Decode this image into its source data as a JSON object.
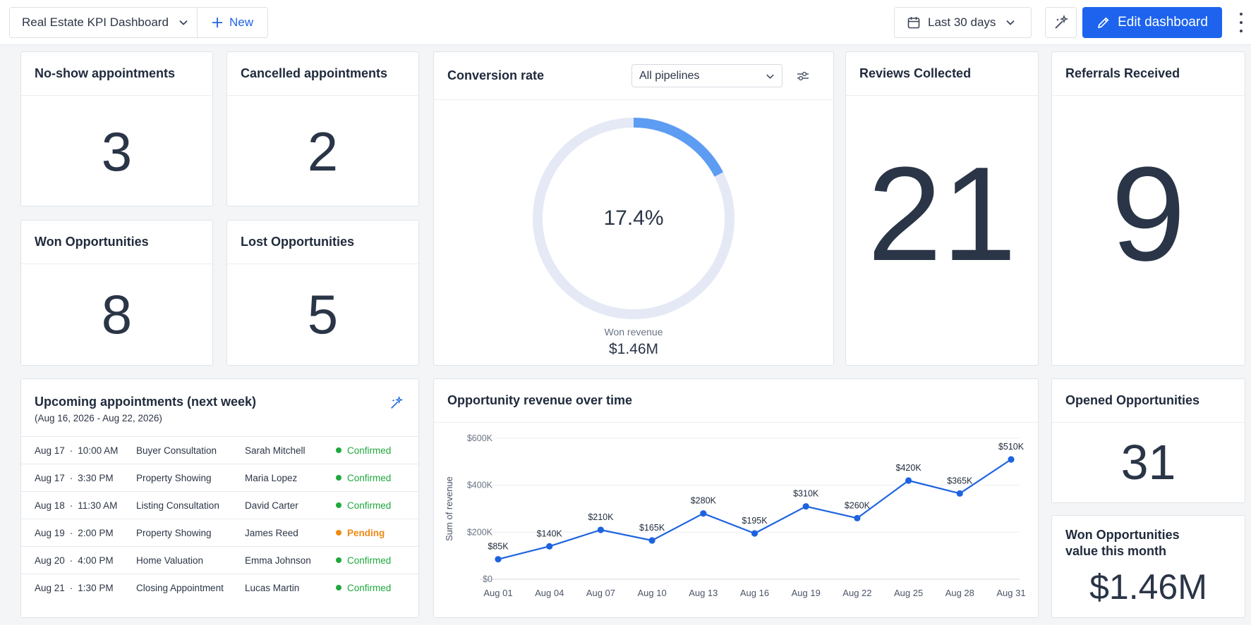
{
  "header": {
    "dashboard_title": "Real Estate KPI Dashboard",
    "new_label": "New",
    "date_range": "Last 30 days",
    "edit_label": "Edit dashboard"
  },
  "kpis": {
    "no_show": {
      "title": "No-show appointments",
      "value": "3"
    },
    "cancelled": {
      "title": "Cancelled appointments",
      "value": "2"
    },
    "won": {
      "title": "Won Opportunities",
      "value": "8"
    },
    "lost": {
      "title": "Lost Opportunities",
      "value": "5"
    },
    "reviews": {
      "title": "Reviews Collected",
      "value": "21"
    },
    "referrals": {
      "title": "Referrals Received",
      "value": "9"
    },
    "opened": {
      "title": "Opened Opportunities",
      "value": "31"
    },
    "won_value": {
      "title_line1": "Won Opportunities",
      "title_line2": "value this month",
      "value": "$1.46M"
    }
  },
  "conversion": {
    "title": "Conversion rate",
    "pipeline_select": "All pipelines",
    "percent_label": "17.4%",
    "percent": 17.4,
    "sub_label": "Won revenue",
    "sub_value": "$1.46M",
    "colors": {
      "track": "#e4e9f5",
      "fill": "#5c9cf3"
    }
  },
  "appointments": {
    "title": "Upcoming appointments (next week)",
    "subtitle": "(Aug 16, 2026 - Aug 22, 2026)",
    "rows": [
      {
        "date": "Aug 17",
        "time": "10:00 AM",
        "type": "Buyer Consultation",
        "client": "Sarah Mitchell",
        "status": "Confirmed"
      },
      {
        "date": "Aug 17",
        "time": "3:30 PM",
        "type": "Property Showing",
        "client": "Maria Lopez",
        "status": "Confirmed"
      },
      {
        "date": "Aug 18",
        "time": "11:30 AM",
        "type": "Listing Consultation",
        "client": "David Carter",
        "status": "Confirmed"
      },
      {
        "date": "Aug 19",
        "time": "2:00 PM",
        "type": "Property Showing",
        "client": "James Reed",
        "status": "Pending"
      },
      {
        "date": "Aug 20",
        "time": "4:00 PM",
        "type": "Home Valuation",
        "client": "Emma Johnson",
        "status": "Confirmed"
      },
      {
        "date": "Aug 21",
        "time": "1:30 PM",
        "type": "Closing Appointment",
        "client": "Lucas Martin",
        "status": "Confirmed"
      }
    ],
    "status_colors": {
      "Confirmed": "#1fa83c",
      "Pending": "#ee8a12"
    }
  },
  "revenue_chart": {
    "title": "Opportunity revenue over time",
    "chart_data": {
      "type": "line",
      "title": "Opportunity revenue over time",
      "ylabel": "Sum of revenue",
      "xlabel": "",
      "x": [
        "Aug 01",
        "Aug 04",
        "Aug 07",
        "Aug 10",
        "Aug 13",
        "Aug 16",
        "Aug 19",
        "Aug 22",
        "Aug 25",
        "Aug 28",
        "Aug 31"
      ],
      "values": [
        85000,
        140000,
        210000,
        165000,
        280000,
        195000,
        310000,
        260000,
        420000,
        365000,
        510000
      ],
      "data_labels": [
        "$85K",
        "$140K",
        "$210K",
        "$165K",
        "$280K",
        "$195K",
        "$310K",
        "$260K",
        "$420K",
        "$365K",
        "$510K"
      ],
      "ylim": [
        0,
        600000
      ],
      "yticks": [
        0,
        200000,
        400000,
        600000
      ],
      "ytick_labels": [
        "$0",
        "$200K",
        "$400K",
        "$600K"
      ],
      "grid": true,
      "color": "#1d63e0"
    }
  }
}
